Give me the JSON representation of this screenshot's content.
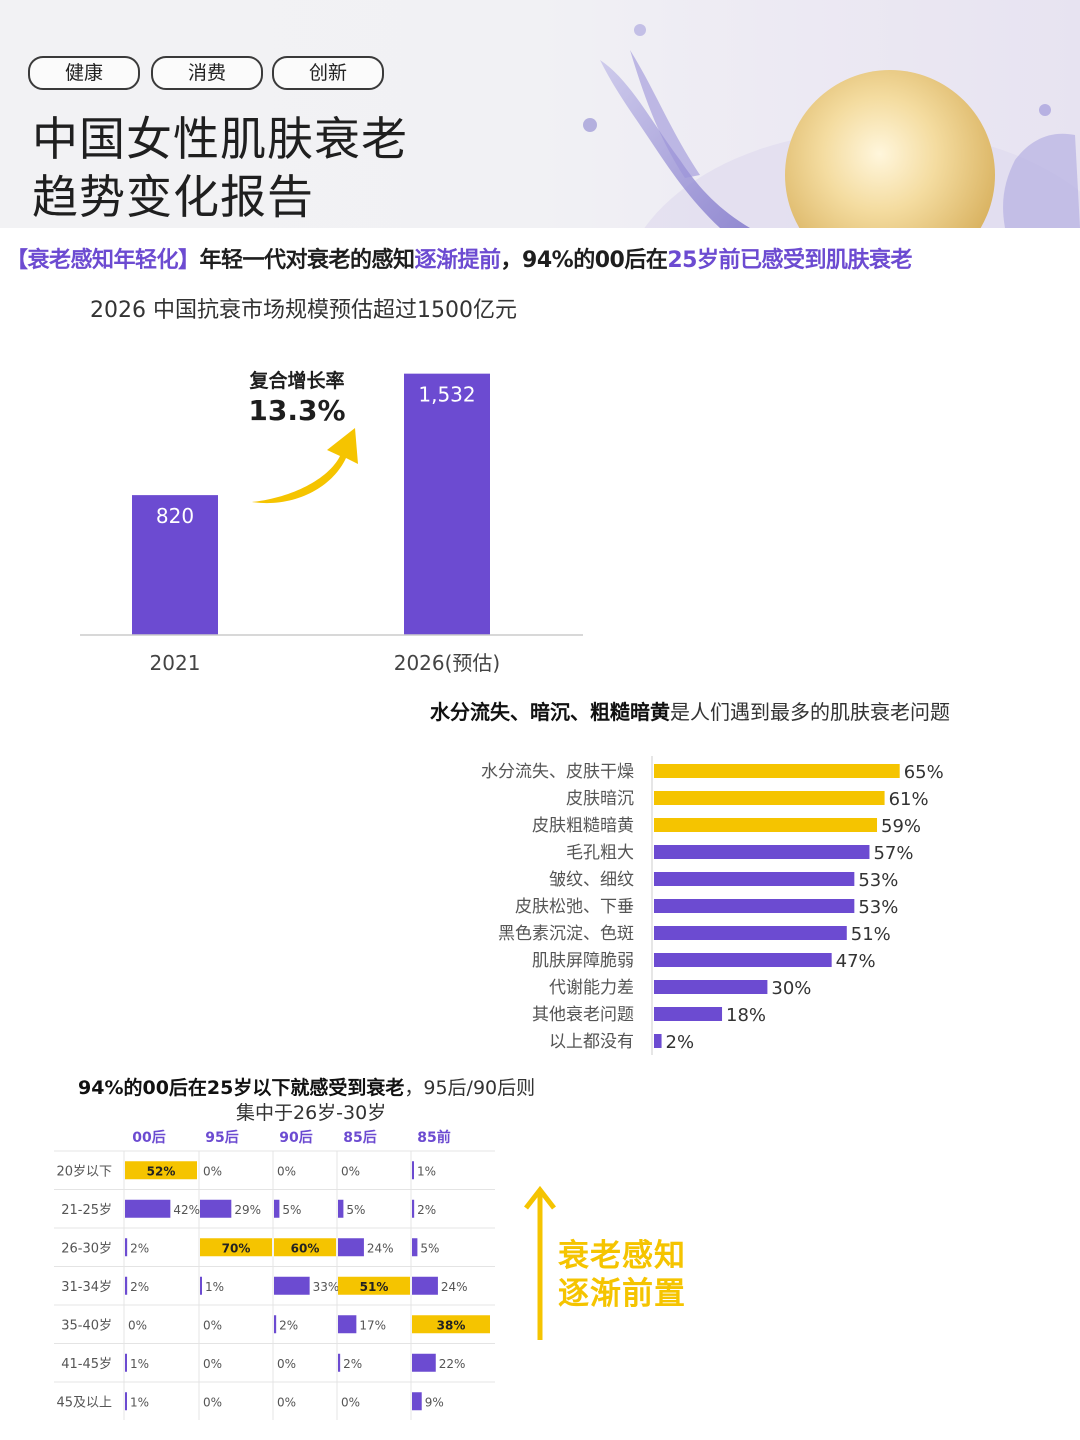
{
  "header": {
    "tags": [
      "健康",
      "消费",
      "创新"
    ],
    "title_line1": "中国女性肌肤衰老",
    "title_line2": "趋势变化报告"
  },
  "headline": {
    "bracket": "【衰老感知年轻化】",
    "text1": "年轻一代对衰老的感知",
    "highlight1": "逐渐提前",
    "text2": "，94%的00后在",
    "highlight2": "25岁前已感受到肌肤衰老"
  },
  "colors": {
    "purple": "#6c4bd1",
    "yellow": "#f5c400",
    "axis": "#cccccc"
  },
  "chart_data": [
    {
      "type": "bar",
      "title": "2026 中国抗衰市场规模预估超过1500亿元",
      "categories": [
        "2021",
        "2026(预估)"
      ],
      "values": [
        820,
        1532
      ],
      "value_labels": [
        "820",
        "1,532"
      ],
      "ylim": [
        0,
        1700
      ],
      "annotation": {
        "label": "复合增长率",
        "value": "13.3%"
      }
    },
    {
      "type": "bar",
      "orientation": "horizontal",
      "title_bold": "水分流失、暗沉、粗糙暗黄",
      "title_rest": "是人们遇到最多的肌肤衰老问题",
      "categories": [
        "水分流失、皮肤干燥",
        "皮肤暗沉",
        "皮肤粗糙暗黄",
        "毛孔粗大",
        "皱纹、细纹",
        "皮肤松弛、下垂",
        "黑色素沉淀、色斑",
        "肌肤屏障脆弱",
        "代谢能力差",
        "其他衰老问题",
        "以上都没有"
      ],
      "values": [
        65,
        61,
        59,
        57,
        53,
        53,
        51,
        47,
        30,
        18,
        2
      ],
      "highlighted": [
        true,
        true,
        true,
        false,
        false,
        false,
        false,
        false,
        false,
        false,
        false
      ],
      "unit": "%"
    },
    {
      "type": "table",
      "title_bold": "94%的00后在25岁以下就感受到衰老",
      "title_rest": "，95后/90后则",
      "title_line2": "集中于26岁-30岁",
      "columns": [
        "00后",
        "95后",
        "90后",
        "85后",
        "85前"
      ],
      "rows": [
        "20岁以下",
        "21-25岁",
        "26-30岁",
        "31-34岁",
        "35-40岁",
        "41-45岁",
        "45及以上"
      ],
      "values": [
        [
          52,
          0,
          0,
          0,
          1
        ],
        [
          42,
          29,
          5,
          5,
          2
        ],
        [
          2,
          70,
          60,
          24,
          5
        ],
        [
          2,
          1,
          33,
          51,
          24
        ],
        [
          0,
          0,
          2,
          17,
          38
        ],
        [
          1,
          0,
          0,
          2,
          22
        ],
        [
          1,
          0,
          0,
          0,
          9
        ]
      ],
      "highlight_max_per_column": true,
      "unit": "%"
    }
  ],
  "side_note": {
    "line1": "衰老感知",
    "line2": "逐渐前置"
  }
}
